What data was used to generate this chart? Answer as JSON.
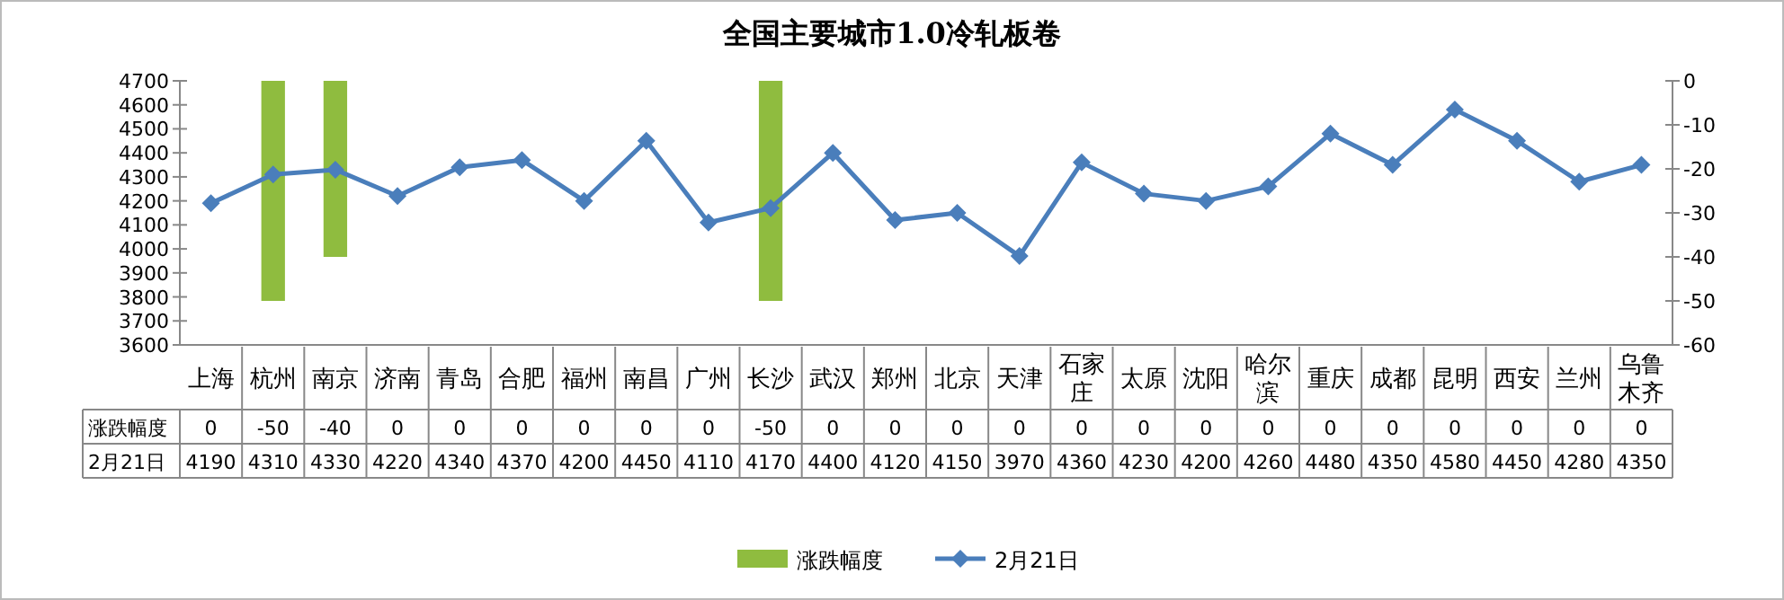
{
  "chart_data": {
    "type": "line",
    "title": "全国主要城市1.0冷轧板卷",
    "categories": [
      "上海",
      "杭州",
      "南京",
      "济南",
      "青岛",
      "合肥",
      "福州",
      "南昌",
      "广州",
      "长沙",
      "武汉",
      "郑州",
      "北京",
      "天津",
      "石家庄",
      "太原",
      "沈阳",
      "哈尔滨",
      "重庆",
      "成都",
      "昆明",
      "西安",
      "兰州",
      "乌鲁木齐"
    ],
    "series": [
      {
        "name": "涨跌幅度",
        "type": "bar",
        "axis": "y2",
        "color": "#8fbc3f",
        "values": [
          0,
          -50,
          -40,
          0,
          0,
          0,
          0,
          0,
          0,
          -50,
          0,
          0,
          0,
          0,
          0,
          0,
          0,
          0,
          0,
          0,
          0,
          0,
          0,
          0
        ]
      },
      {
        "name": "2月21日",
        "color": "#4a7ebb",
        "values": [
          4190,
          4310,
          4330,
          4220,
          4340,
          4370,
          4200,
          4450,
          4110,
          4170,
          4400,
          4120,
          4150,
          3970,
          4360,
          4230,
          4200,
          4260,
          4480,
          4350,
          4580,
          4450,
          4280,
          4350
        ]
      }
    ],
    "ylim": [
      3600,
      4700
    ],
    "yticks": [
      3600,
      3700,
      3800,
      3900,
      4000,
      4100,
      4200,
      4300,
      4400,
      4500,
      4600,
      4700
    ],
    "y2lim": [
      -60,
      0
    ],
    "y2ticks": [
      -60,
      -50,
      -40,
      -30,
      -20,
      -10,
      0
    ],
    "marker": "diamond",
    "data_labels": true,
    "legend": "bottom",
    "grid": false
  }
}
